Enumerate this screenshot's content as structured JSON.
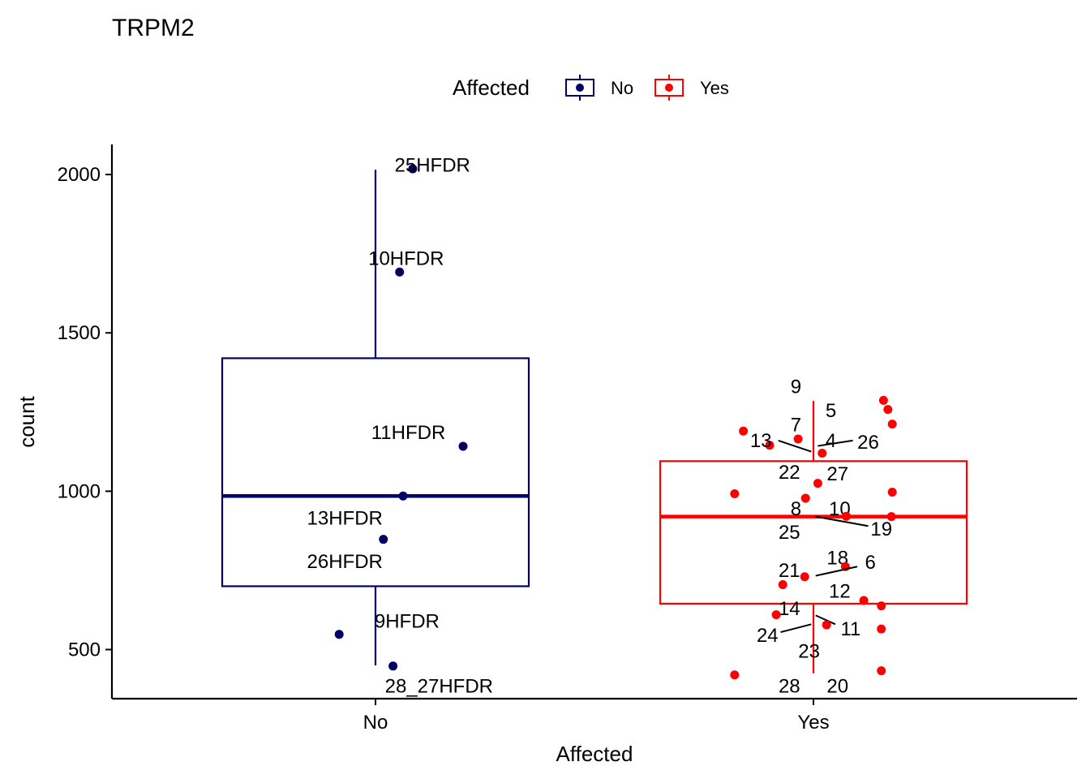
{
  "chart_data": {
    "type": "box",
    "title": "TRPM2",
    "xlabel": "Affected",
    "ylabel": "count",
    "categories": [
      "No",
      "Yes"
    ],
    "ylim": [
      345,
      2095
    ],
    "yticks": [
      500,
      1000,
      1500,
      2000
    ],
    "grid": false,
    "legend": {
      "title": "Affected",
      "position": "top",
      "entries": [
        {
          "label": "No",
          "color": "#000066"
        },
        {
          "label": "Yes",
          "color": "#FF0000"
        }
      ]
    },
    "series": [
      {
        "category": "No",
        "color": "#000066",
        "box": {
          "whisker_low": 450,
          "q1": 700,
          "median": 985,
          "q3": 1420,
          "whisker_high": 2015
        },
        "points": [
          {
            "label": "25HFDR",
            "jitter": 0.085,
            "y": 2018,
            "lx": 0.13,
            "ly": 2030
          },
          {
            "label": "10HFDR",
            "jitter": 0.055,
            "y": 1692,
            "lx": 0.07,
            "ly": 1735
          },
          {
            "label": "11HFDR",
            "jitter": 0.2,
            "y": 1142,
            "lx": 0.075,
            "ly": 1185
          },
          {
            "label": "13HFDR",
            "jitter": 0.063,
            "y": 985,
            "lx": -0.07,
            "ly": 915
          },
          {
            "label": "26HFDR",
            "jitter": 0.018,
            "y": 848,
            "lx": -0.07,
            "ly": 778
          },
          {
            "label": "9HFDR",
            "jitter": -0.083,
            "y": 548,
            "lx": 0.072,
            "ly": 590
          },
          {
            "label": "28_27HFDR",
            "jitter": 0.04,
            "y": 448,
            "lx": 0.145,
            "ly": 385
          }
        ]
      },
      {
        "category": "Yes",
        "color": "#FF0000",
        "box": {
          "whisker_low": 425,
          "q1": 645,
          "median": 920,
          "q3": 1095,
          "whisker_high": 1285
        },
        "points": [
          {
            "label": "9",
            "jitter": 0.16,
            "y": 1287,
            "lx": -0.04,
            "ly": 1330
          },
          {
            "label": "5",
            "jitter": 0.18,
            "y": 1212,
            "lx": 0.04,
            "ly": 1255
          },
          {
            "label": "7",
            "jitter": -0.16,
            "y": 1190,
            "lx": -0.04,
            "ly": 1210
          },
          {
            "label": "13",
            "jitter": -0.1,
            "y": 1145,
            "lx": -0.12,
            "ly": 1160,
            "seg": [
              -0.08,
              1160,
              -0.005,
              1125
            ]
          },
          {
            "label": "4",
            "jitter": -0.035,
            "y": 1165,
            "lx": 0.04,
            "ly": 1160
          },
          {
            "label": "26",
            "jitter": 0.02,
            "y": 1120,
            "lx": 0.125,
            "ly": 1155,
            "seg": [
              0.01,
              1143,
              0.09,
              1160
            ]
          },
          {
            "label": "22",
            "jitter": 0.17,
            "y": 1258,
            "lx": -0.055,
            "ly": 1060
          },
          {
            "label": "27",
            "jitter": 0.01,
            "y": 1025,
            "lx": 0.055,
            "ly": 1055
          },
          {
            "label": "8",
            "jitter": -0.018,
            "y": 978,
            "lx": -0.04,
            "ly": 945
          },
          {
            "label": "10",
            "jitter": -0.18,
            "y": 992,
            "lx": 0.06,
            "ly": 945
          },
          {
            "label": "19",
            "jitter": 0.178,
            "y": 920,
            "lx": 0.155,
            "ly": 880,
            "seg": [
              0.005,
              920,
              0.125,
              890
            ]
          },
          {
            "label": "25",
            "jitter": 0.18,
            "y": 997,
            "lx": -0.055,
            "ly": 870
          },
          {
            "label": "18",
            "jitter": 0.075,
            "y": 921,
            "lx": 0.055,
            "ly": 790
          },
          {
            "label": "21",
            "jitter": -0.02,
            "y": 730,
            "lx": -0.055,
            "ly": 750
          },
          {
            "label": "6",
            "jitter": 0.073,
            "y": 762,
            "lx": 0.13,
            "ly": 775,
            "seg": [
              0.005,
              733,
              0.1,
              762
            ]
          },
          {
            "label": "12",
            "jitter": 0.115,
            "y": 655,
            "lx": 0.06,
            "ly": 685
          },
          {
            "label": "14",
            "jitter": -0.07,
            "y": 705,
            "lx": -0.055,
            "ly": 630
          },
          {
            "label": "24",
            "jitter": -0.085,
            "y": 610,
            "lx": -0.105,
            "ly": 545,
            "seg": [
              -0.075,
              555,
              -0.005,
              580
            ]
          },
          {
            "label": "11",
            "jitter": 0.155,
            "y": 638,
            "lx": 0.085,
            "ly": 565,
            "seg": [
              0.005,
              608,
              0.05,
              580
            ]
          },
          {
            "label": "23",
            "jitter": 0.03,
            "y": 578,
            "lx": -0.01,
            "ly": 495
          },
          {
            "label": "28",
            "jitter": -0.18,
            "y": 420,
            "lx": -0.055,
            "ly": 385
          },
          {
            "label": "20",
            "jitter": 0.155,
            "y": 433,
            "lx": 0.055,
            "ly": 385
          },
          {
            "label": "",
            "jitter": 0.155,
            "y": 565
          }
        ]
      }
    ]
  }
}
